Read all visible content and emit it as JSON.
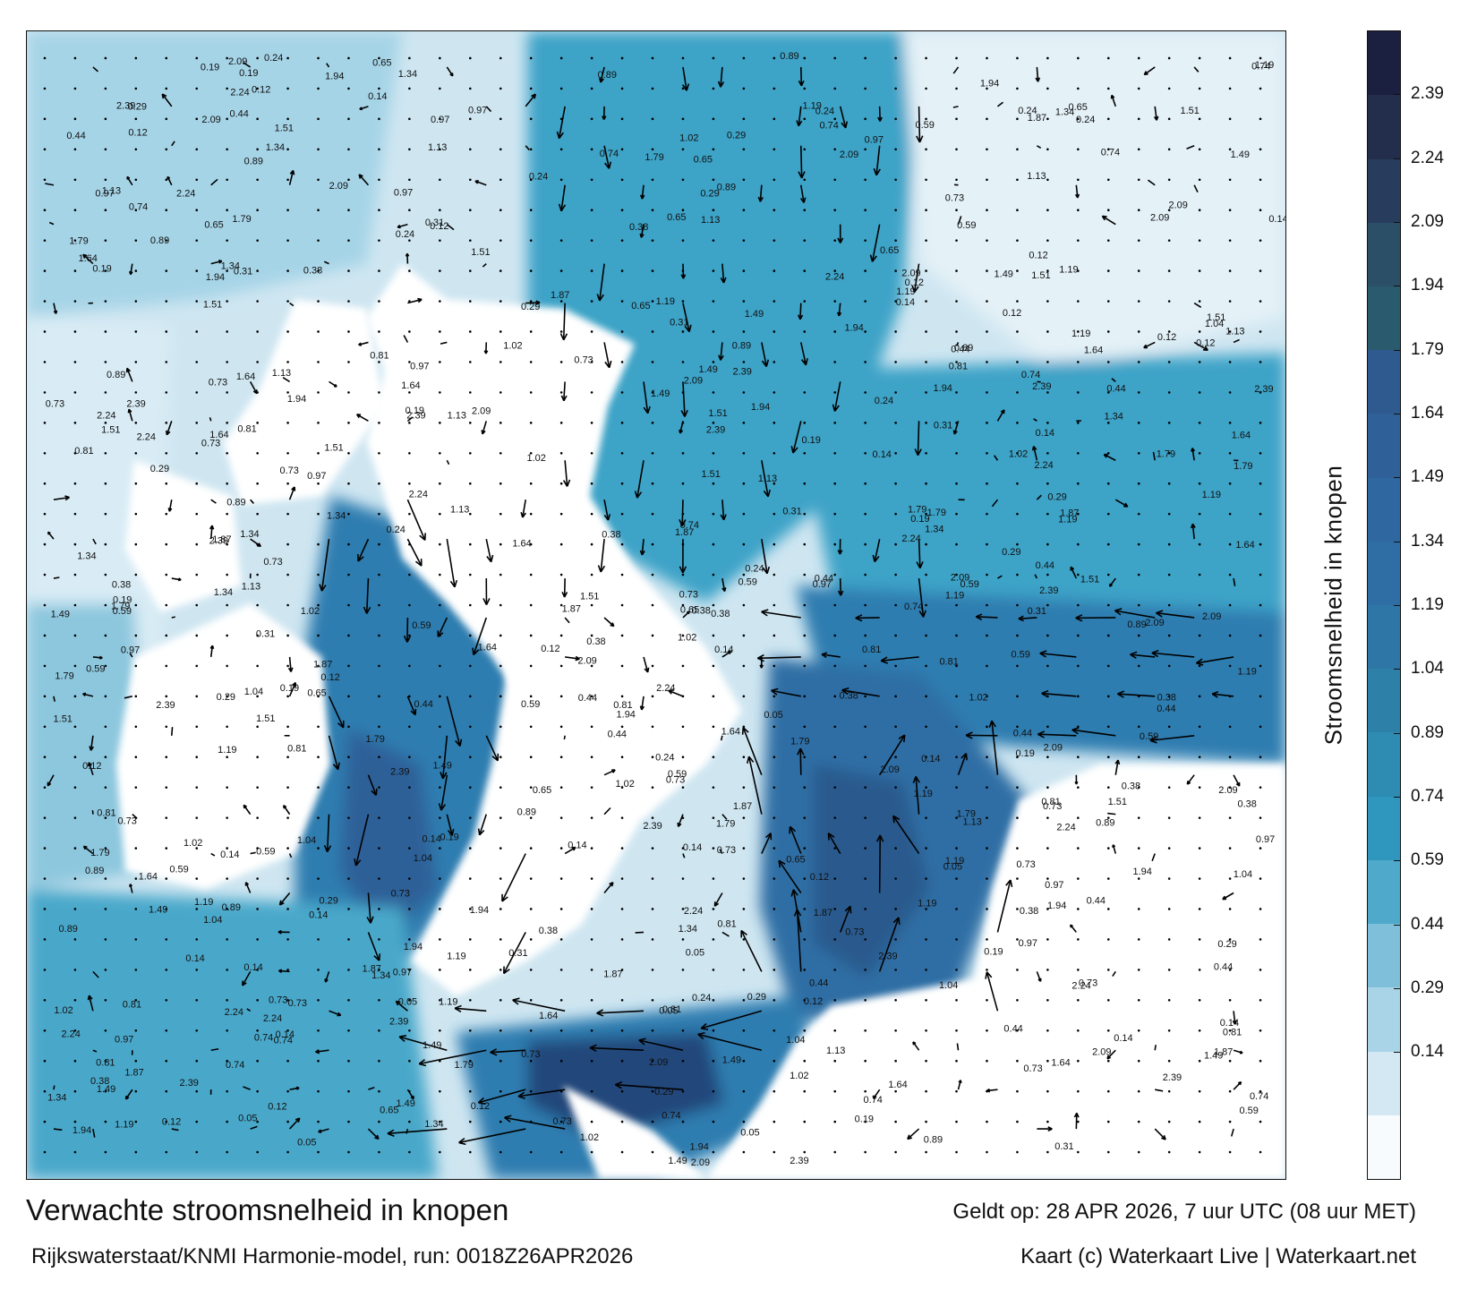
{
  "map": {
    "region": "Southern North Sea, English Channel and coastal waters of the Netherlands, Belgium and England",
    "quantity": "Stroomsnelheid",
    "unit": "knopen",
    "field_colors": {
      "land": "#ffffff",
      "very_low": "#e8f2f8",
      "low": "#b9dcea",
      "medium": "#5fb4cf",
      "high": "#2a8db3",
      "very_high": "#2f6da3",
      "extreme": "#213c6b",
      "arrow": "#000000",
      "grid_dot": "#000000"
    },
    "has_grid_dots_over_land": true,
    "has_vector_arrows": true,
    "has_value_labels": true,
    "visible_value_labels": [
      "0.24",
      "0.31",
      "0.44",
      "0.59",
      "0.74",
      "0.89",
      "1.04",
      "1.19",
      "1.34",
      "1.49",
      "1.64",
      "1.79",
      "1.94",
      "2.09",
      "2.24",
      "2.39",
      "0.14",
      "0.29",
      "1.51",
      "1.87",
      "0.97",
      "0.73",
      "0.65",
      "0.38",
      "0.19",
      "0.05",
      "0.12",
      "1.13",
      "1.02",
      "0.81"
    ]
  },
  "colorbar": {
    "label": "Stroomsnelheid in knopen",
    "ticks": [
      "2.39",
      "2.24",
      "2.09",
      "1.94",
      "1.79",
      "1.64",
      "1.49",
      "1.34",
      "1.19",
      "1.04",
      "0.89",
      "0.74",
      "0.59",
      "0.44",
      "0.29",
      "0.14"
    ],
    "segment_colors": [
      "#f7fbfd",
      "#d3e8f2",
      "#a9d3e6",
      "#7fbfd9",
      "#4ea9cb",
      "#2f97bd",
      "#2e8bb1",
      "#2d80a8",
      "#2d76a5",
      "#2f6ea4",
      "#2f68a0",
      "#2f6198",
      "#2f5a8f",
      "#2a5a6d",
      "#2a4f67",
      "#283d5e",
      "#232e4d",
      "#1c2040"
    ]
  },
  "footer": {
    "title": "Verwachte stroomsnelheid in knopen",
    "model": "Rijkswaterstaat/KNMI Harmonie-model, run: 0018Z26APR2026",
    "valid": "Geldt op: 28 APR 2026, 7 uur UTC (08 uur MET)",
    "credit": "Kaart (c) Waterkaart Live | Waterkaart.net"
  }
}
